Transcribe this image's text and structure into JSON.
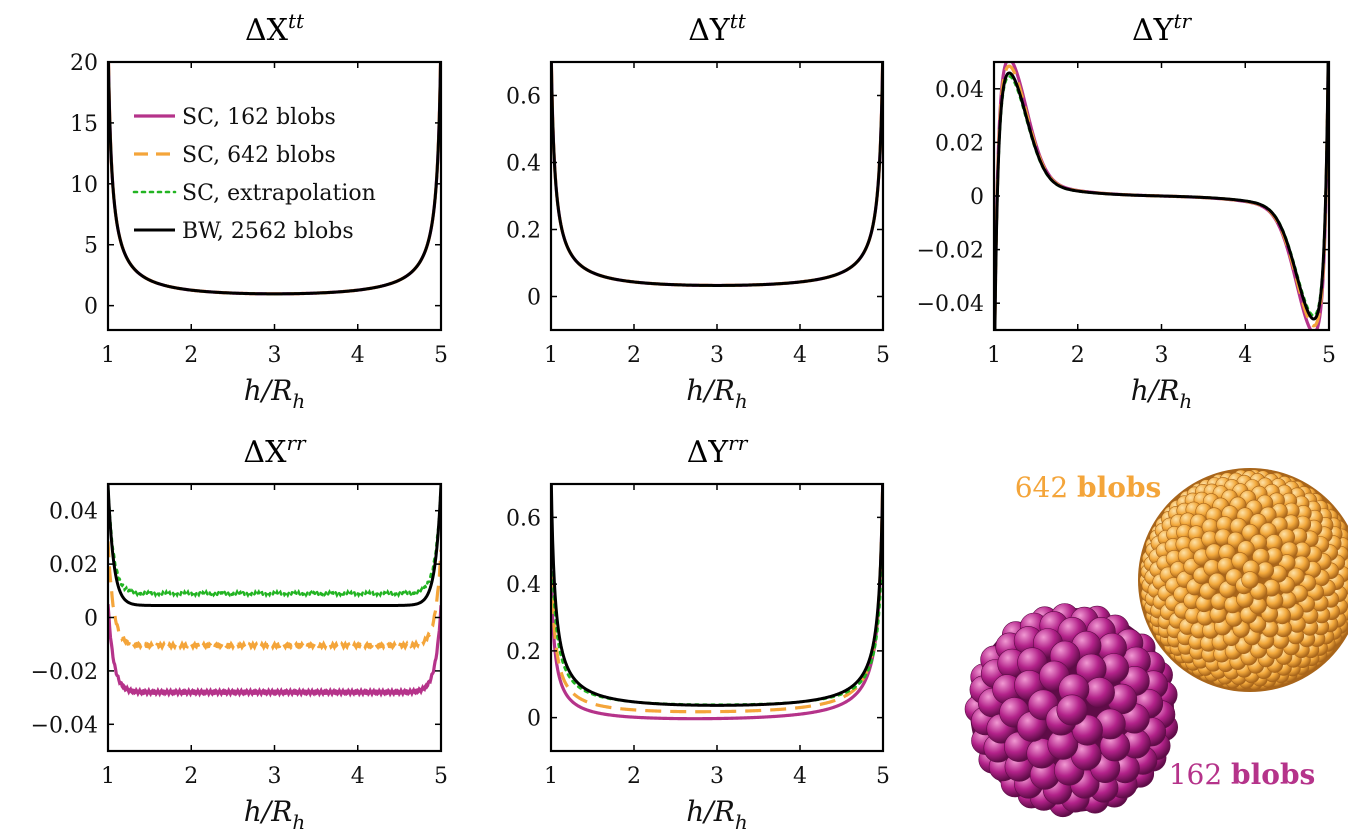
{
  "colors": {
    "magenta": "#b5338a",
    "orange": "#f4a53a",
    "green": "#22b422",
    "black": "#000000"
  },
  "legend": {
    "entries": [
      {
        "label": "SC, 162 blobs",
        "color": "#b5338a",
        "dash": "solid"
      },
      {
        "label": "SC, 642 blobs",
        "color": "#f4a53a",
        "dash": "dashed"
      },
      {
        "label": "SC, extrapolation",
        "color": "#22b422",
        "dash": "dotted"
      },
      {
        "label": "BW, 2562 blobs",
        "color": "#000000",
        "dash": "solid"
      }
    ]
  },
  "illustration": {
    "label_642_num": "642",
    "label_642_word": "blobs",
    "label_162_num": "162",
    "label_162_word": "blobs"
  },
  "chart_data": [
    {
      "type": "line",
      "title": "ΔX",
      "title_sup": "tt",
      "xlabel": "h/R",
      "xlabel_sub": "h",
      "xlim": [
        1,
        5
      ],
      "ylim": [
        -2,
        20
      ],
      "xticks": [
        1,
        2,
        3,
        4,
        5
      ],
      "yticks": [
        0,
        5,
        10,
        15,
        20
      ],
      "yticklabels": [
        "0",
        "5",
        "10",
        "15",
        "20"
      ],
      "series": [
        {
          "name": "SC, 162 blobs",
          "baseline": 0.0,
          "edge_left": 22,
          "edge_right": 22
        },
        {
          "name": "SC, 642 blobs",
          "baseline": 0.0,
          "edge_left": 22,
          "edge_right": 22
        },
        {
          "name": "SC, extrapolation",
          "baseline": 0.0,
          "edge_left": 22,
          "edge_right": 22
        },
        {
          "name": "BW, 2562 blobs",
          "baseline": 0.0,
          "edge_left": 22,
          "edge_right": 22
        }
      ],
      "shape": "wall"
    },
    {
      "type": "line",
      "title": "ΔY",
      "title_sup": "tt",
      "xlabel": "h/R",
      "xlabel_sub": "h",
      "xlim": [
        1,
        5
      ],
      "ylim": [
        -0.1,
        0.7
      ],
      "xticks": [
        1,
        2,
        3,
        4,
        5
      ],
      "yticks": [
        0,
        0.2,
        0.4,
        0.6
      ],
      "yticklabels": [
        "0",
        "0.2",
        "0.4",
        "0.6"
      ],
      "series": [
        {
          "name": "SC, 162 blobs",
          "baseline": 0.0,
          "edge_left": 0.75,
          "edge_right": 0.75
        },
        {
          "name": "SC, 642 blobs",
          "baseline": 0.0,
          "edge_left": 0.75,
          "edge_right": 0.75
        },
        {
          "name": "SC, extrapolation",
          "baseline": 0.0,
          "edge_left": 0.75,
          "edge_right": 0.75
        },
        {
          "name": "BW, 2562 blobs",
          "baseline": 0.0,
          "edge_left": 0.75,
          "edge_right": 0.75
        }
      ],
      "shape": "wall"
    },
    {
      "type": "line",
      "title": "ΔY",
      "title_sup": "tr",
      "xlabel": "h/R",
      "xlabel_sub": "h",
      "xlim": [
        1,
        5
      ],
      "ylim": [
        -0.05,
        0.05
      ],
      "xticks": [
        1,
        2,
        3,
        4,
        5
      ],
      "yticks": [
        -0.04,
        -0.02,
        0,
        0.02,
        0.04
      ],
      "yticklabels": [
        "−0.04",
        "−0.02",
        "0",
        "0.02",
        "0.04"
      ],
      "series": [
        {
          "name": "SC, 162 blobs",
          "peak": 0.041
        },
        {
          "name": "SC, 642 blobs",
          "peak": 0.039
        },
        {
          "name": "SC, extrapolation",
          "peak": 0.036
        },
        {
          "name": "BW, 2562 blobs",
          "peak": 0.037
        }
      ],
      "shape": "antisym"
    },
    {
      "type": "line",
      "title": "ΔX",
      "title_sup": "rr",
      "xlabel": "h/R",
      "xlabel_sub": "h",
      "xlim": [
        1,
        5
      ],
      "ylim": [
        -0.05,
        0.05
      ],
      "xticks": [
        1,
        2,
        3,
        4,
        5
      ],
      "yticks": [
        -0.04,
        -0.02,
        0,
        0.02,
        0.04
      ],
      "yticklabels": [
        "−0.04",
        "−0.02",
        "0",
        "0.02",
        "0.04"
      ],
      "series": [
        {
          "name": "SC, 162 blobs",
          "baseline": -0.028,
          "edge_left": 0.005,
          "edge_right": 0.004
        },
        {
          "name": "SC, 642 blobs",
          "baseline": -0.0105,
          "edge_left": 0.028,
          "edge_right": 0.025
        },
        {
          "name": "SC, extrapolation",
          "baseline": 0.009,
          "edge_left": 0.05,
          "edge_right": 0.05
        },
        {
          "name": "BW, 2562 blobs",
          "baseline": 0.0045,
          "edge_left": 0.05,
          "edge_right": 0.05
        }
      ],
      "shape": "plateau"
    },
    {
      "type": "line",
      "title": "ΔY",
      "title_sup": "rr",
      "xlabel": "h/R",
      "xlabel_sub": "h",
      "xlim": [
        1,
        5
      ],
      "ylim": [
        -0.1,
        0.7
      ],
      "xticks": [
        1,
        2,
        3,
        4,
        5
      ],
      "yticks": [
        0,
        0.2,
        0.4,
        0.6
      ],
      "yticklabels": [
        "0",
        "0.2",
        "0.4",
        "0.6"
      ],
      "series": [
        {
          "name": "SC, 162 blobs",
          "baseline": -0.03,
          "edge_left": 0.43,
          "edge_right": 0.75
        },
        {
          "name": "SC, 642 blobs",
          "baseline": -0.01,
          "edge_left": 0.5,
          "edge_right": 0.75
        },
        {
          "name": "SC, extrapolation",
          "baseline": 0.012,
          "edge_left": 0.62,
          "edge_right": 0.62
        },
        {
          "name": "BW, 2562 blobs",
          "baseline": 0.004,
          "edge_left": 0.75,
          "edge_right": 0.75
        }
      ],
      "shape": "wall"
    }
  ]
}
